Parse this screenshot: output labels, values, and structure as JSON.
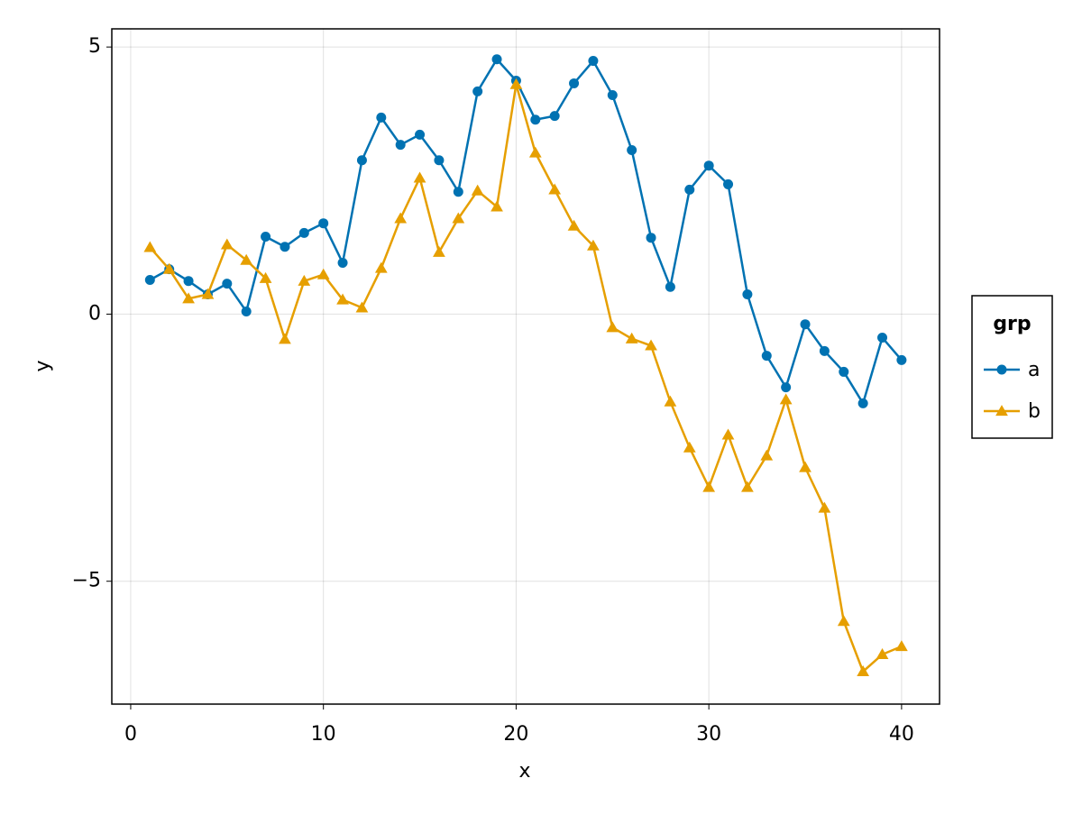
{
  "chart_data": {
    "type": "line",
    "x_label": "x",
    "y_label": "y",
    "x": [
      1,
      2,
      3,
      4,
      5,
      6,
      7,
      8,
      9,
      10,
      11,
      12,
      13,
      14,
      15,
      16,
      17,
      18,
      19,
      20,
      21,
      22,
      23,
      24,
      25,
      26,
      27,
      28,
      29,
      30,
      31,
      32,
      33,
      34,
      35,
      36,
      37,
      38,
      39,
      40
    ],
    "series": [
      {
        "name": "a",
        "color": "#0072b2",
        "marker": "circle",
        "values": [
          0.64,
          0.84,
          0.62,
          0.37,
          0.57,
          0.05,
          1.45,
          1.26,
          1.52,
          1.7,
          0.96,
          2.88,
          3.68,
          3.17,
          3.36,
          2.88,
          2.29,
          4.17,
          4.77,
          4.37,
          3.64,
          3.71,
          4.32,
          4.74,
          4.1,
          3.07,
          1.43,
          0.51,
          2.33,
          2.78,
          2.43,
          0.37,
          -0.78,
          -1.37,
          -0.19,
          -0.69,
          -1.08,
          -1.67,
          -0.44,
          -0.86
        ]
      },
      {
        "name": "b",
        "color": "#e69f00",
        "marker": "triangle",
        "values": [
          1.25,
          0.84,
          0.29,
          0.37,
          1.3,
          1.01,
          0.67,
          -0.47,
          0.62,
          0.74,
          0.27,
          0.12,
          0.86,
          1.79,
          2.55,
          1.16,
          1.79,
          2.31,
          2.01,
          4.3,
          3.02,
          2.33,
          1.65,
          1.28,
          -0.25,
          -0.46,
          -0.59,
          -1.64,
          -2.5,
          -3.24,
          -2.26,
          -3.24,
          -2.65,
          -1.6,
          -2.87,
          -3.63,
          -5.75,
          -6.69,
          -6.37,
          -6.22
        ]
      }
    ],
    "xlim": [
      -0.98,
      41.97
    ],
    "xticks": [
      0,
      10,
      20,
      30,
      40
    ],
    "ylim": [
      -7.3,
      5.34
    ],
    "yticks": [
      {
        "value": -5,
        "label": "−5"
      },
      0,
      5
    ],
    "grid": true,
    "legend": {
      "title": "grp",
      "position": "right"
    }
  }
}
